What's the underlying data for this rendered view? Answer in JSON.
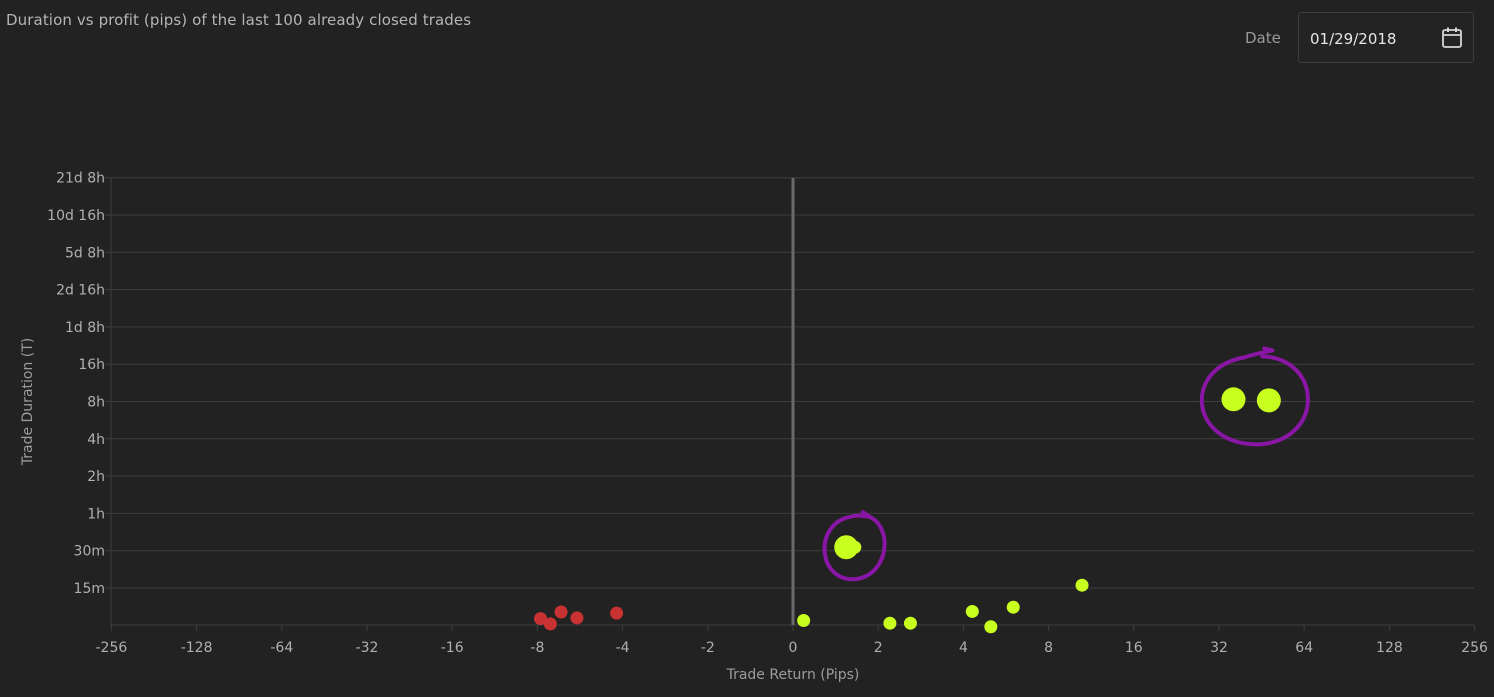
{
  "header": {
    "title": "Duration vs profit (pips) of the last 100 already closed trades",
    "date_label": "Date",
    "date_value": "01/29/2018"
  },
  "colors": {
    "background": "#222222",
    "grid": "#3e3e3e",
    "zero_line": "#6a6a6a",
    "loss": "#c83232",
    "profit": "#c8ff1e",
    "annotation": "#8a16a6"
  },
  "icons": {
    "date_picker": "calendar-icon"
  },
  "chart_data": {
    "type": "scatter",
    "title": "Duration vs profit (pips) of the last 100 already closed trades",
    "xlabel": "Trade Return (Pips)",
    "ylabel": "Trade Duration (T)",
    "x_scale": "symlog-base2",
    "y_scale": "log-base2",
    "x_ticks": [
      -256,
      -128,
      -64,
      -32,
      -16,
      -8,
      -4,
      -2,
      0,
      2,
      4,
      8,
      16,
      32,
      64,
      128,
      256
    ],
    "x_tick_labels": [
      "-256",
      "-128",
      "-64",
      "-32",
      "-16",
      "-8",
      "-4",
      "-2",
      "0",
      "2",
      "4",
      "8",
      "16",
      "32",
      "64",
      "128",
      "256"
    ],
    "y_ticks_minutes": [
      15,
      30,
      60,
      120,
      240,
      480,
      960,
      1920,
      3840,
      7680,
      15360,
      30720
    ],
    "y_tick_labels": [
      "15m",
      "30m",
      "1h",
      "2h",
      "4h",
      "8h",
      "16h",
      "1d 8h",
      "2d 16h",
      "5d 8h",
      "10d 16h",
      "21d 8h"
    ],
    "grid": true,
    "legend": "none",
    "series": [
      {
        "color": "#c83232",
        "points": [
          {
            "x": -7.8,
            "y": 8.5
          },
          {
            "x": -7.2,
            "y": 7.7
          },
          {
            "x": -6.6,
            "y": 9.6
          },
          {
            "x": -5.8,
            "y": 8.6
          },
          {
            "x": -4.2,
            "y": 9.4
          }
        ]
      },
      {
        "color": "#c8ff1e",
        "points": [
          {
            "x": 0.25,
            "y": 8.2
          },
          {
            "x": 1.25,
            "y": 32,
            "size": "large"
          },
          {
            "x": 1.45,
            "y": 32
          },
          {
            "x": 2.2,
            "y": 7.8
          },
          {
            "x": 2.6,
            "y": 7.8
          },
          {
            "x": 4.3,
            "y": 9.7
          },
          {
            "x": 5.0,
            "y": 7.3
          },
          {
            "x": 6.0,
            "y": 10.5
          },
          {
            "x": 10.5,
            "y": 15.8
          },
          {
            "x": 36,
            "y": 500,
            "size": "large"
          },
          {
            "x": 48,
            "y": 490,
            "size": "large"
          }
        ]
      }
    ],
    "annotations": [
      {
        "shape": "hand-drawn-circle",
        "around_x": 42,
        "around_y": 490
      },
      {
        "shape": "hand-drawn-circle",
        "around_x": 1.4,
        "around_y": 32
      }
    ]
  }
}
